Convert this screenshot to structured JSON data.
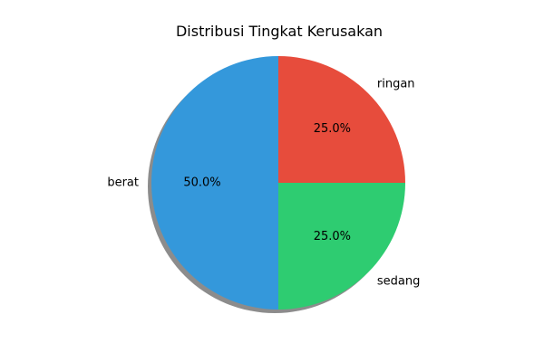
{
  "chart_data": {
    "type": "pie",
    "title": "Distribusi Tingkat Kerusakan",
    "slices": [
      {
        "label": "ringan",
        "value": 25.0,
        "pct_text": "25.0%",
        "color": "#e74c3c"
      },
      {
        "label": "sedang",
        "value": 25.0,
        "pct_text": "25.0%",
        "color": "#2ecc71"
      },
      {
        "label": "berat",
        "value": 50.0,
        "pct_text": "50.0%",
        "color": "#3498db"
      }
    ],
    "start_angle_deg": 90,
    "direction": "clockwise",
    "shadow": true,
    "legend": "none"
  }
}
